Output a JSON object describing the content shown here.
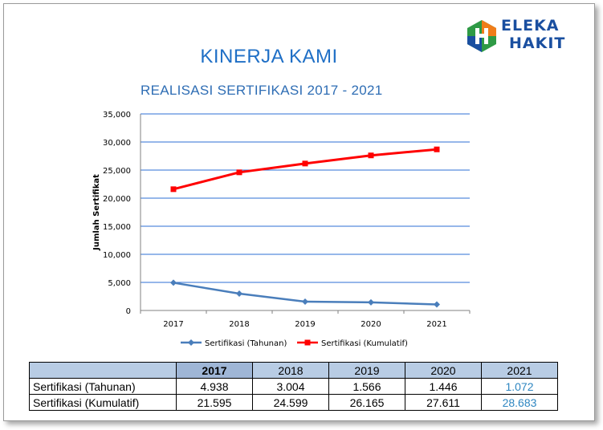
{
  "header": {
    "title": "KINERJA KAMI",
    "subtitle": "REALISASI SERTIFIKASI   2017 - 2021"
  },
  "logo": {
    "line1": "ELEKA",
    "line2": "HAKIT",
    "colors": {
      "green": "#2e9a45",
      "orange": "#f07d1a",
      "blue": "#1a4fa0"
    }
  },
  "chart_data": {
    "type": "line",
    "categories": [
      "2017",
      "2018",
      "2019",
      "2020",
      "2021"
    ],
    "series": [
      {
        "name": "Sertifikasi (Tahunan)",
        "values": [
          4938,
          3004,
          1566,
          1446,
          1072
        ],
        "color": "#4a7ebb",
        "marker": "diamond"
      },
      {
        "name": "Sertifikasi (Kumulatif)",
        "values": [
          21595,
          24599,
          26165,
          27611,
          28683
        ],
        "color": "#ff0000",
        "marker": "square"
      }
    ],
    "ylabel": "Jumlah Sertifikat",
    "ylim": [
      0,
      35000
    ],
    "yticks": [
      "0",
      "5,000",
      "10,000",
      "15,000",
      "20,000",
      "25,000",
      "30,000",
      "35,000"
    ],
    "grid": true,
    "legend": "bottom"
  },
  "table": {
    "headers": [
      "",
      "2017",
      "2018",
      "2019",
      "2020",
      "2021"
    ],
    "rows": [
      {
        "label": "Sertifikasi (Tahunan)",
        "values": [
          "4.938",
          "3.004",
          "1.566",
          "1.446",
          "1.072"
        ]
      },
      {
        "label": "Sertifikasi (Kumulatif)",
        "values": [
          "21.595",
          "24.599",
          "26.165",
          "27.611",
          "28.683"
        ]
      }
    ]
  }
}
